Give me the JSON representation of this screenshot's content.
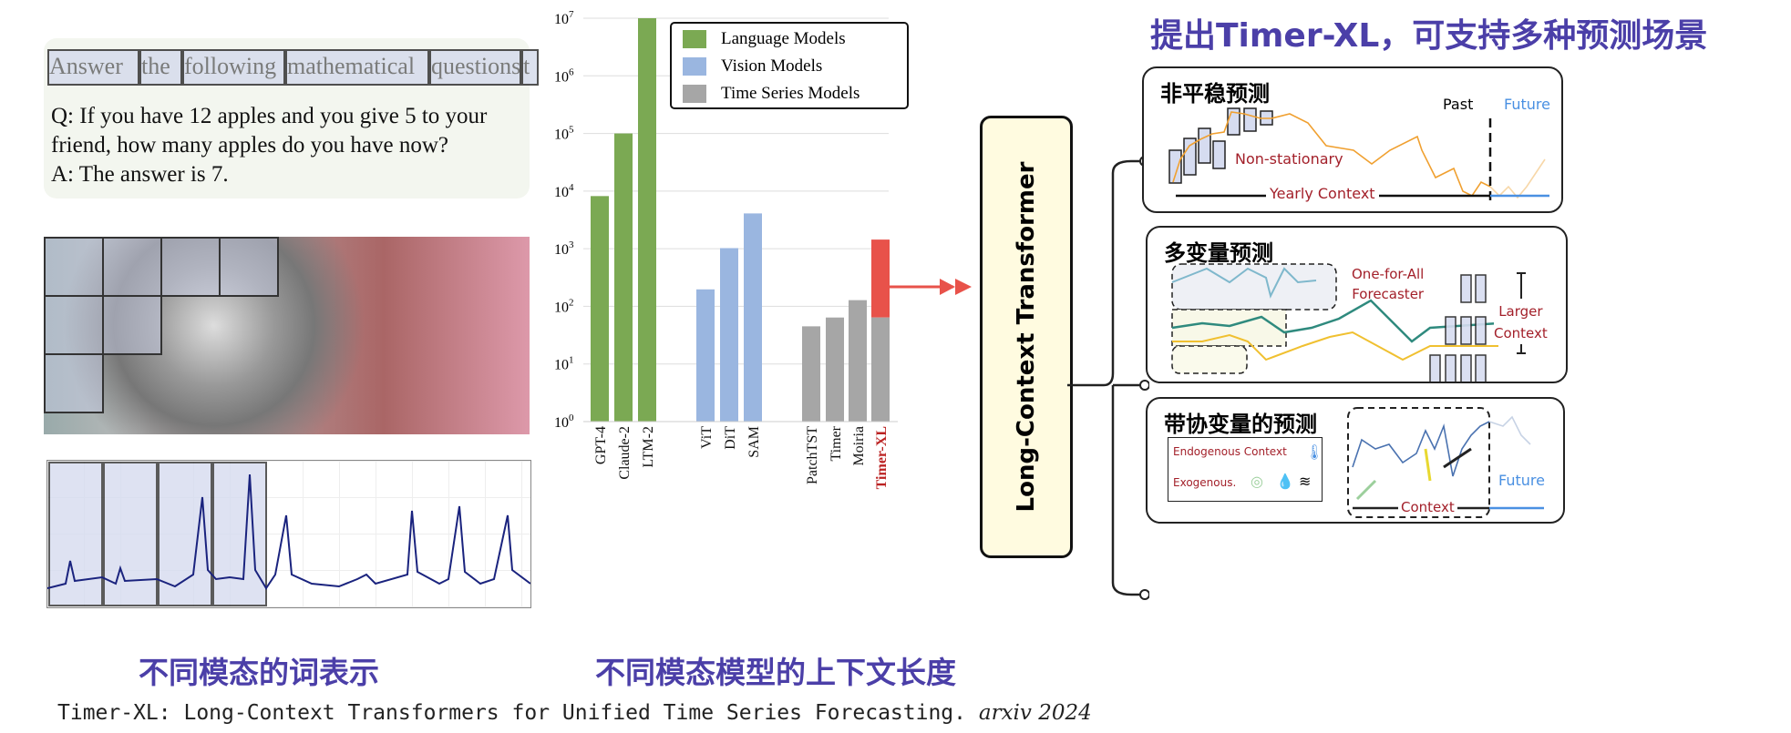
{
  "left": {
    "tokens": [
      "Answer",
      "the",
      "following",
      "mathematical",
      "questions",
      "t"
    ],
    "qa_lines": [
      "Q: If you have 12 apples and you give 5 to your",
      "friend, how many apples do you have now?",
      "A: The answer is 7."
    ],
    "caption": "不同模态的词表示"
  },
  "chart_caption": "不同模态模型的上下文长度",
  "citation": {
    "text": "Timer-XL: Long-Context Transformers for Unified Time Series Forecasting.",
    "venue": "arxiv 2024"
  },
  "chart_data": {
    "type": "bar",
    "yscale": "log",
    "ylim": [
      1,
      10000000
    ],
    "yticks": [
      "10^0",
      "10^1",
      "10^2",
      "10^3",
      "10^4",
      "10^5",
      "10^6",
      "10^7"
    ],
    "grid": true,
    "legend_position": "top-right",
    "legend": [
      "Language Models",
      "Vision Models",
      "Time Series Models"
    ],
    "colors": {
      "Language Models": "#7ba953",
      "Vision Models": "#9ab6e0",
      "Time Series Models": "#a6a6a6",
      "highlight": "#e8524a"
    },
    "categories": [
      "GPT-4",
      "Claude-2",
      "LTM-2",
      "ViT",
      "DiT",
      "SAM",
      "PatchTST",
      "Timer",
      "Moiria",
      "Timer-XL"
    ],
    "groups": [
      "Language Models",
      "Language Models",
      "Language Models",
      "Vision Models",
      "Vision Models",
      "Vision Models",
      "Time Series Models",
      "Time Series Models",
      "Time Series Models",
      "Time Series Models"
    ],
    "values": [
      8192,
      100000,
      10000000,
      197,
      1024,
      4096,
      45,
      64,
      128,
      1440
    ],
    "timer_xl_base": 64
  },
  "transformer_label": "Long-Context Transformer",
  "right": {
    "title": "提出Timer-XL，可支持多种预测场景",
    "panel1": {
      "title": "非平稳预测",
      "non_stationary": "Non-stationary",
      "yearly_context": "Yearly Context",
      "past": "Past",
      "future": "Future"
    },
    "panel2": {
      "title": "多变量预测",
      "one_for_all": "One-for-All",
      "forecaster": "Forecaster",
      "larger": "Larger",
      "context": "Context"
    },
    "panel3": {
      "title": "带协变量的预测",
      "endogenous": "Endogenous Context",
      "exogenous": "Exogenous.",
      "context": "Context",
      "future": "Future"
    }
  }
}
